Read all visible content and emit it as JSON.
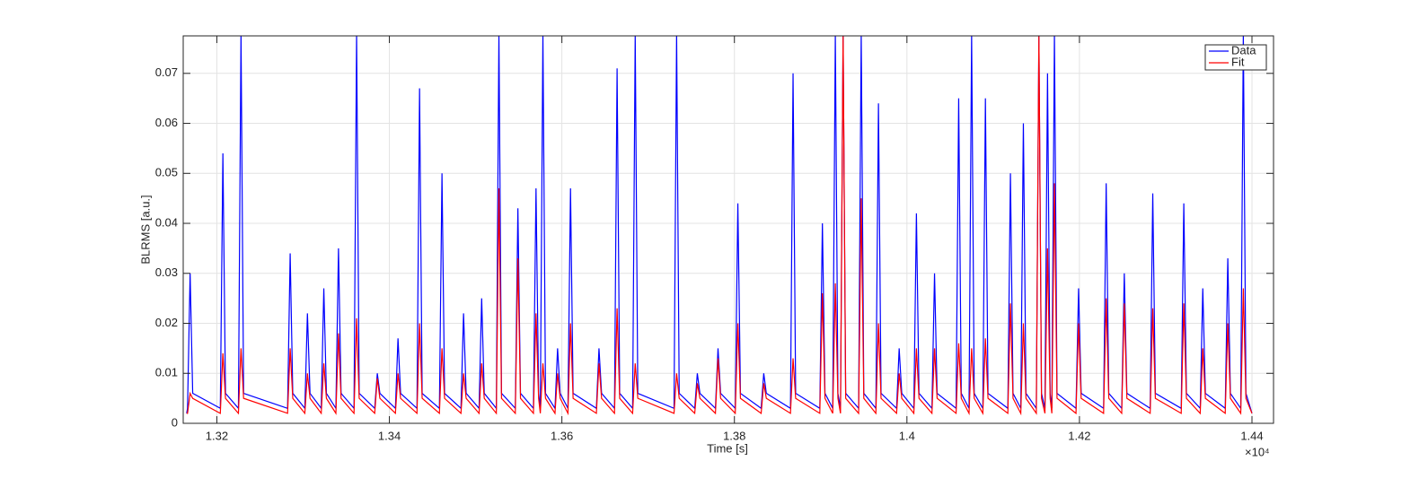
{
  "chart_data": {
    "type": "line",
    "x_label": "Time [s]",
    "y_label": "BLRMS [a.u.]",
    "x_exponent": "×10⁴",
    "xlim": [
      13161,
      14425
    ],
    "ylim": [
      0,
      0.0775
    ],
    "xticks": [
      {
        "value": 13200,
        "label": "1.32"
      },
      {
        "value": 13400,
        "label": "1.34"
      },
      {
        "value": 13600,
        "label": "1.36"
      },
      {
        "value": 13800,
        "label": "1.38"
      },
      {
        "value": 14000,
        "label": "1.4"
      },
      {
        "value": 14200,
        "label": "1.42"
      },
      {
        "value": 14400,
        "label": "1.44"
      }
    ],
    "yticks": [
      0,
      0.01,
      0.02,
      0.03,
      0.04,
      0.05,
      0.06,
      0.07
    ],
    "grid": true,
    "legend": "upper right",
    "x": [
      13165,
      13166,
      13169,
      13172,
      13204,
      13207,
      13210,
      13225,
      13228,
      13231,
      13282,
      13285,
      13288,
      13302,
      13305,
      13308,
      13321,
      13324,
      13327,
      13338,
      13341,
      13344,
      13359,
      13362,
      13365,
      13383,
      13386,
      13389,
      13407,
      13410,
      13413,
      13432,
      13435,
      13438,
      13458,
      13461,
      13464,
      13483,
      13486,
      13489,
      13504,
      13507,
      13510,
      13524,
      13527,
      13530,
      13546,
      13549,
      13552,
      13567,
      13570,
      13573,
      13575,
      13578,
      13581,
      13592,
      13595,
      13598,
      13607,
      13610,
      13613,
      13640,
      13643,
      13646,
      13661,
      13664,
      13667,
      13682,
      13685,
      13688,
      13730,
      13733,
      13736,
      13754,
      13757,
      13760,
      13778,
      13781,
      13784,
      13801,
      13804,
      13807,
      13831,
      13834,
      13837,
      13865,
      13868,
      13871,
      13899,
      13902,
      13905,
      13914,
      13917,
      13920,
      13923,
      13926,
      13929,
      13944,
      13947,
      13950,
      13964,
      13967,
      13970,
      13988,
      13991,
      13994,
      14008,
      14011,
      14014,
      14029,
      14032,
      14035,
      14057,
      14060,
      14063,
      14072,
      14075,
      14078,
      14088,
      14091,
      14094,
      14117,
      14120,
      14123,
      14132,
      14135,
      14138,
      14150,
      14153,
      14156,
      14160,
      14163,
      14166,
      14168,
      14171,
      14174,
      14196,
      14199,
      14202,
      14228,
      14231,
      14234,
      14249,
      14252,
      14255,
      14282,
      14285,
      14288,
      14318,
      14321,
      14324,
      14340,
      14343,
      14346,
      14369,
      14372,
      14375,
      14387,
      14390,
      14393,
      14400
    ],
    "series": [
      {
        "name": "Data",
        "color": "#0000ff",
        "values": [
          0.002,
          0.003,
          0.03,
          0.006,
          0.003,
          0.054,
          0.006,
          0.003,
          0.078,
          0.006,
          0.003,
          0.034,
          0.006,
          0.003,
          0.022,
          0.006,
          0.003,
          0.027,
          0.006,
          0.003,
          0.035,
          0.006,
          0.003,
          0.078,
          0.006,
          0.003,
          0.01,
          0.006,
          0.003,
          0.017,
          0.006,
          0.003,
          0.067,
          0.006,
          0.003,
          0.05,
          0.006,
          0.003,
          0.022,
          0.006,
          0.003,
          0.025,
          0.006,
          0.003,
          0.078,
          0.006,
          0.003,
          0.043,
          0.006,
          0.003,
          0.047,
          0.006,
          0.003,
          0.078,
          0.006,
          0.003,
          0.015,
          0.006,
          0.003,
          0.047,
          0.006,
          0.003,
          0.015,
          0.006,
          0.003,
          0.071,
          0.006,
          0.003,
          0.078,
          0.006,
          0.003,
          0.078,
          0.006,
          0.003,
          0.01,
          0.006,
          0.003,
          0.015,
          0.006,
          0.003,
          0.044,
          0.006,
          0.003,
          0.01,
          0.006,
          0.003,
          0.07,
          0.006,
          0.003,
          0.04,
          0.006,
          0.003,
          0.078,
          0.006,
          0.003,
          0.078,
          0.006,
          0.003,
          0.078,
          0.006,
          0.003,
          0.064,
          0.006,
          0.003,
          0.015,
          0.006,
          0.003,
          0.042,
          0.006,
          0.003,
          0.03,
          0.006,
          0.003,
          0.065,
          0.006,
          0.003,
          0.078,
          0.006,
          0.003,
          0.065,
          0.006,
          0.003,
          0.05,
          0.006,
          0.003,
          0.06,
          0.006,
          0.003,
          0.078,
          0.006,
          0.003,
          0.07,
          0.006,
          0.003,
          0.078,
          0.006,
          0.003,
          0.027,
          0.006,
          0.003,
          0.048,
          0.006,
          0.003,
          0.03,
          0.006,
          0.003,
          0.046,
          0.006,
          0.003,
          0.044,
          0.006,
          0.003,
          0.027,
          0.006,
          0.003,
          0.033,
          0.006,
          0.003,
          0.078,
          0.006,
          0.002
        ]
      },
      {
        "name": "Fit",
        "color": "#ff0000",
        "values": [
          0.002,
          0.002,
          0.006,
          0.005,
          0.002,
          0.014,
          0.005,
          0.002,
          0.015,
          0.005,
          0.002,
          0.015,
          0.005,
          0.002,
          0.01,
          0.005,
          0.002,
          0.012,
          0.005,
          0.002,
          0.018,
          0.005,
          0.002,
          0.021,
          0.005,
          0.002,
          0.009,
          0.005,
          0.002,
          0.01,
          0.005,
          0.002,
          0.02,
          0.005,
          0.002,
          0.015,
          0.005,
          0.002,
          0.01,
          0.005,
          0.002,
          0.012,
          0.005,
          0.002,
          0.047,
          0.005,
          0.002,
          0.033,
          0.005,
          0.002,
          0.022,
          0.005,
          0.002,
          0.012,
          0.005,
          0.002,
          0.01,
          0.005,
          0.002,
          0.02,
          0.005,
          0.002,
          0.012,
          0.005,
          0.002,
          0.023,
          0.005,
          0.002,
          0.012,
          0.005,
          0.002,
          0.01,
          0.005,
          0.002,
          0.008,
          0.005,
          0.002,
          0.013,
          0.005,
          0.002,
          0.02,
          0.005,
          0.002,
          0.008,
          0.005,
          0.002,
          0.013,
          0.005,
          0.002,
          0.026,
          0.005,
          0.002,
          0.028,
          0.005,
          0.002,
          0.078,
          0.005,
          0.002,
          0.045,
          0.005,
          0.002,
          0.02,
          0.005,
          0.002,
          0.01,
          0.005,
          0.002,
          0.015,
          0.005,
          0.002,
          0.015,
          0.005,
          0.002,
          0.016,
          0.005,
          0.002,
          0.015,
          0.005,
          0.002,
          0.017,
          0.005,
          0.002,
          0.024,
          0.005,
          0.002,
          0.02,
          0.005,
          0.002,
          0.078,
          0.005,
          0.002,
          0.035,
          0.005,
          0.002,
          0.048,
          0.005,
          0.002,
          0.02,
          0.005,
          0.002,
          0.025,
          0.005,
          0.002,
          0.024,
          0.005,
          0.002,
          0.023,
          0.005,
          0.002,
          0.024,
          0.005,
          0.002,
          0.015,
          0.005,
          0.002,
          0.02,
          0.005,
          0.002,
          0.027,
          0.005,
          0.002
        ]
      }
    ]
  }
}
